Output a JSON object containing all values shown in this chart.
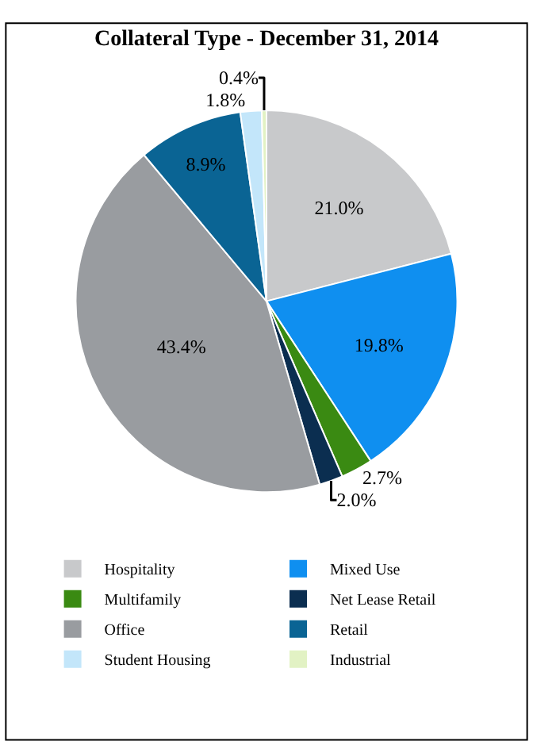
{
  "chart_data": {
    "type": "pie",
    "title": "Collateral Type - December 31, 2014",
    "categories": [
      "Hospitality",
      "Mixed Use",
      "Multifamily",
      "Net Lease Retail",
      "Office",
      "Retail",
      "Student Housing",
      "Industrial"
    ],
    "values": [
      21.0,
      19.8,
      2.7,
      2.0,
      43.4,
      8.9,
      1.8,
      0.4
    ],
    "colors": [
      "#c8c9cb",
      "#0f8ff0",
      "#3a8a12",
      "#0b2e50",
      "#999ca0",
      "#0a6494",
      "#c3e6fa",
      "#e2f2c4"
    ],
    "value_labels": [
      "21.0%",
      "19.8%",
      "2.7%",
      "2.0%",
      "43.4%",
      "8.9%",
      "1.8%",
      "0.4%"
    ],
    "legend": "bottom"
  }
}
